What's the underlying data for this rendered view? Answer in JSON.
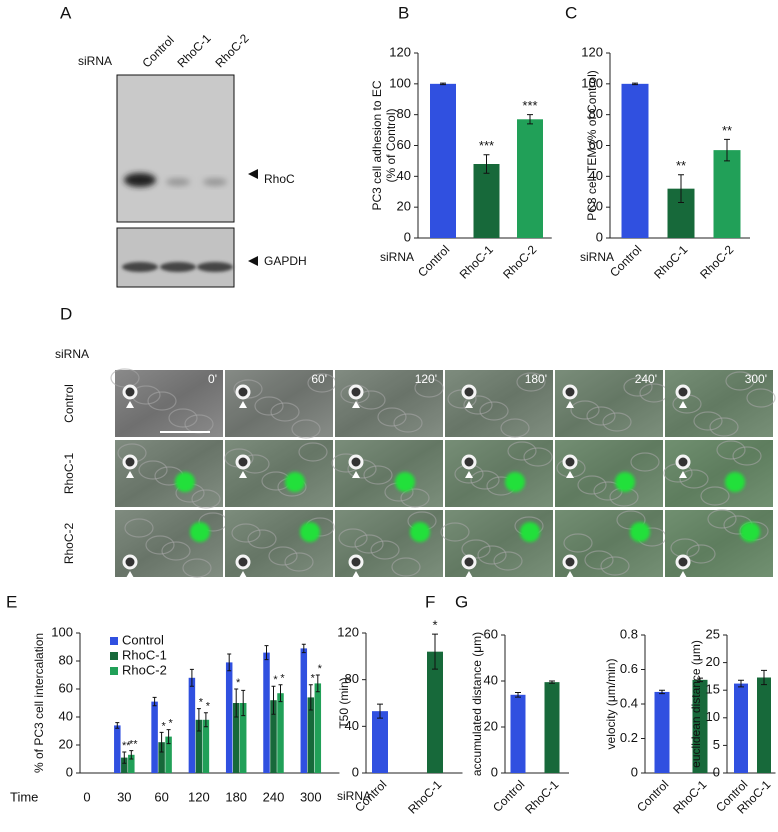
{
  "panel_labels": [
    "A",
    "B",
    "C",
    "D",
    "E",
    "F",
    "G"
  ],
  "blot": {
    "prefix": "siRNA",
    "lanes": [
      "Control",
      "RhoC-1",
      "RhoC-2"
    ],
    "bands": [
      "RhoC",
      "GAPDH"
    ]
  },
  "timelapse": {
    "prefix": "siRNA",
    "rows": [
      "Control",
      "RhoC-1",
      "RhoC-2"
    ],
    "times": [
      "0'",
      "60'",
      "120'",
      "180'",
      "240'",
      "300'"
    ]
  },
  "chart_data": [
    {
      "type": "bar",
      "ylabel": [
        "PC3 cell adhesion to EC",
        "(% of Control)"
      ],
      "x_prefix": "siRNA",
      "categories": [
        "Control",
        "RhoC-1",
        "RhoC-2"
      ],
      "values": [
        100,
        48,
        77
      ],
      "errors": [
        0.5,
        6,
        3
      ],
      "annotations": [
        null,
        "***",
        "***"
      ],
      "colors": [
        "#3050e0",
        "#17693a",
        "#21a058"
      ],
      "ylim": [
        0,
        120
      ],
      "yticks": [
        0,
        20,
        40,
        60,
        80,
        100,
        120
      ]
    },
    {
      "type": "bar",
      "ylabel": [
        "PC3 cell TEM (% of Control)"
      ],
      "x_prefix": "siRNA",
      "categories": [
        "Control",
        "RhoC-1",
        "RhoC-2"
      ],
      "values": [
        100,
        32,
        57
      ],
      "errors": [
        0.5,
        9,
        7
      ],
      "annotations": [
        null,
        "**",
        "**"
      ],
      "colors": [
        "#3050e0",
        "#17693a",
        "#21a058"
      ],
      "ylim": [
        0,
        120
      ],
      "yticks": [
        0,
        20,
        40,
        60,
        80,
        100,
        120
      ]
    },
    {
      "type": "grouped_bar",
      "ylabel": [
        "% of PC3 cell intercalation"
      ],
      "xlabel": "Time",
      "categories": [
        0,
        30,
        60,
        120,
        180,
        240,
        300
      ],
      "legend": "top-left",
      "series": [
        {
          "name": "Control",
          "color": "#3050e0",
          "values": [
            null,
            34,
            51,
            68,
            79,
            86,
            89
          ],
          "errors": [
            null,
            2,
            3,
            6,
            6,
            5,
            3
          ],
          "annotations": [
            null,
            null,
            null,
            null,
            null,
            null,
            null
          ]
        },
        {
          "name": "RhoC-1",
          "color": "#17693a",
          "values": [
            null,
            11,
            22,
            38,
            50,
            52,
            54
          ],
          "errors": [
            null,
            4,
            7,
            8,
            10,
            10,
            9
          ],
          "annotations": [
            null,
            "**",
            "*",
            "*",
            "*",
            "*",
            "*"
          ]
        },
        {
          "name": "RhoC-2",
          "color": "#21a058",
          "values": [
            null,
            13,
            26,
            38,
            50,
            57,
            64
          ],
          "errors": [
            null,
            3,
            5,
            5,
            9,
            6,
            6
          ],
          "annotations": [
            null,
            "**",
            "*",
            "*",
            null,
            "*",
            "*"
          ]
        }
      ],
      "ylim": [
        0,
        100
      ],
      "yticks": [
        0,
        20,
        40,
        60,
        80,
        100
      ]
    },
    {
      "type": "bar",
      "ylabel": [
        "T50 (min)"
      ],
      "x_prefix": "siRNA",
      "categories": [
        "Control",
        "RhoC-1"
      ],
      "values": [
        53,
        104
      ],
      "errors": [
        6,
        15
      ],
      "annotations": [
        null,
        "*"
      ],
      "colors": [
        "#3050e0",
        "#17693a"
      ],
      "ylim": [
        0,
        120
      ],
      "yticks": [
        0,
        40,
        80,
        120
      ]
    },
    {
      "type": "bar",
      "ylabel": [
        "accumulated distance (μm)"
      ],
      "categories": [
        "Control",
        "RhoC-1"
      ],
      "values": [
        34,
        39.5
      ],
      "errors": [
        1,
        0.5
      ],
      "annotations": [
        null,
        null
      ],
      "colors": [
        "#3050e0",
        "#17693a"
      ],
      "ylim": [
        0,
        60
      ],
      "yticks": [
        0,
        20,
        40,
        60
      ]
    },
    {
      "type": "bar",
      "ylabel": [
        "velocity (μm/min)"
      ],
      "categories": [
        "Control",
        "RhoC-1"
      ],
      "values": [
        0.47,
        0.54
      ],
      "errors": [
        0.01,
        0.01
      ],
      "annotations": [
        null,
        null
      ],
      "colors": [
        "#3050e0",
        "#17693a"
      ],
      "ylim": [
        0,
        0.8
      ],
      "yticks": [
        0,
        0.2,
        0.4,
        0.6,
        0.8
      ]
    },
    {
      "type": "bar",
      "ylabel": [
        "euclidean distance (μm)"
      ],
      "categories": [
        "Control",
        "RhoC-1"
      ],
      "values": [
        16.2,
        17.3
      ],
      "errors": [
        0.6,
        1.3
      ],
      "annotations": [
        null,
        null
      ],
      "colors": [
        "#3050e0",
        "#17693a"
      ],
      "ylim": [
        0,
        25
      ],
      "yticks": [
        0,
        5,
        10,
        15,
        20,
        25
      ]
    }
  ]
}
